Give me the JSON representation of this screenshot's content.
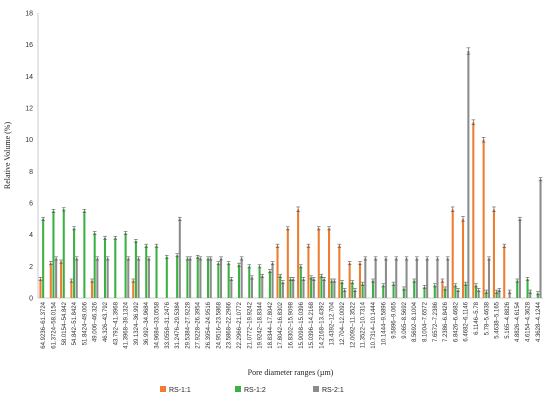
{
  "chart_data": {
    "type": "bar",
    "title": "",
    "xlabel": "Pore diameter ranges (µm)",
    "ylabel": "Relative Volume (%)",
    "ylim": [
      0,
      18
    ],
    "yticks": [
      0,
      2,
      4,
      6,
      8,
      10,
      12,
      14,
      16,
      18
    ],
    "grid": false,
    "legend_position": "bottom",
    "categories": [
      "64.9236–61.3724",
      "61.3724–58.0154",
      "58.0154–54.842",
      "54.842–51.8424",
      "51.8424–49.006",
      "49.006–46.326",
      "46.326–43.792",
      "43.792–41.3968",
      "41.3968–39.1324",
      "39.1324–36.992",
      "36.992–34.9684",
      "34.9684–33.0558",
      "33.0558–31.2476",
      "31.2476–29.5384",
      "29.5384–27.9228",
      "27.9228–26.3954",
      "26.3954–24.9516",
      "24.9516–23.5868",
      "23.5868–22.2966",
      "22.2966–21.0772",
      "21.0772–19.9242",
      "19.9242–18.8344",
      "18.8344–17.8042",
      "17.8042–16.8302",
      "16.8302–15.9098",
      "15.9098–15.0396",
      "15.0396–14.2168",
      "14.2168–13.4392",
      "13.4392–12.704",
      "12.704–12.0092",
      "12.0092–11.3522",
      "11.3522–10.7314",
      "10.7314–10.1444",
      "10.1444–9.5896",
      "9.5896–9.065",
      "9.065–8.5692",
      "8.5692–8.1004",
      "8.1004–7.6572",
      "7.6572–7.2386",
      "7.2386–6.8426",
      "6.8426–6.4682",
      "6.4682–6.1146",
      "6.1146–5.78",
      "5.78–5.4638",
      "5.4638–5.165",
      "5.165–4.8826",
      "4.8826–4.6154",
      "4.6154–4.3628",
      "4.3628–4.1244"
    ],
    "tick_labels_shown": [
      "64.9236–61.3724",
      "61.3724–58.0154",
      "58.0154–54.842",
      "54.842–51.8424",
      "51.8424–49.006",
      "49.006–46.326",
      "46.326–43.792",
      "43.792–41.3968",
      "41.3968–39.1324",
      "39.1324–36.992",
      "36.992–34.9684",
      "34.9684–33.0558",
      "33.0558–31.2476",
      "31.2476–29.5384",
      "29.5384–27.9228",
      "27.9228–26.3954",
      "26.3954–24.9516",
      "24.9516–23.5868",
      "23.5868–22.2966",
      "22.2966–21.0772",
      "21.0772–19.9242",
      "19.9242–18.8344",
      "18.8344–17.8042",
      "17.8042–16.8302",
      "16.8302–15.9098",
      "15.9098–15.0396",
      "15.0396–14.2168",
      "14.2168–13.4392",
      "13.4392–12.704",
      "12.704–12.0092",
      "12.0092–11.3522",
      "11.3522–10.7314",
      "10.7314–10.1444",
      "10.1444–9.5896",
      "9.5896–9.065",
      "9.065–8.5692",
      "8.5692–8.1004",
      "8.1004–7.6572",
      "7.6572–7.2386",
      "7.2386–6.8426",
      "6.8426–6.4682",
      "6.4682–6.1146",
      "6.1146–5.78",
      "5.78–5.4638",
      "5.4638–5.165",
      "5.165–4.8826",
      "4.8826–4.6154",
      "4.6154–4.3628",
      "4.3628–4.1244"
    ],
    "series": [
      {
        "name": "RS-1:1",
        "color": "#ED7D31",
        "values": [
          1.2,
          2.2,
          2.3,
          1.1,
          0,
          1.1,
          0,
          0,
          0,
          1.1,
          0,
          0,
          0,
          0,
          0,
          0,
          0,
          0,
          0,
          0,
          0,
          0,
          0,
          3.3,
          4.4,
          5.6,
          3.3,
          4.4,
          4.4,
          3.3,
          2.2,
          2.2,
          0,
          0,
          0,
          0,
          0,
          0,
          0,
          1.1,
          5.6,
          5.0,
          11.1,
          10.0,
          5.6,
          3.3,
          0,
          0,
          0
        ],
        "errors": [
          0.1,
          0.1,
          0.1,
          0.1,
          0,
          0.1,
          0,
          0,
          0,
          0.1,
          0,
          0,
          0,
          0,
          0,
          0,
          0,
          0,
          0,
          0,
          0,
          0,
          0,
          0.1,
          0.1,
          0.15,
          0.1,
          0.1,
          0.1,
          0.1,
          0.1,
          0.1,
          0,
          0,
          0,
          0,
          0,
          0,
          0,
          0.1,
          0.15,
          0.15,
          0.15,
          0.15,
          0.15,
          0.1,
          0,
          0,
          0
        ]
      },
      {
        "name": "RS-1:2",
        "color": "#3CB043",
        "values": [
          5.0,
          5.5,
          5.6,
          4.4,
          5.5,
          4.1,
          3.8,
          3.8,
          4.1,
          3.6,
          3.3,
          3.3,
          2.6,
          2.7,
          2.5,
          2.6,
          2.5,
          2.2,
          2.2,
          2.1,
          2.0,
          2.0,
          1.7,
          1.4,
          1.2,
          2.0,
          1.3,
          1.4,
          1.1,
          1.0,
          1.0,
          0.9,
          1.1,
          0.8,
          0.9,
          0.6,
          1.1,
          0.7,
          0.8,
          0.6,
          0.8,
          0.9,
          0.8,
          0.4,
          0.4,
          0,
          1.1,
          1.2,
          0.3
        ],
        "errors": [
          0.1,
          0.1,
          0.1,
          0.1,
          0.1,
          0.1,
          0.1,
          0.1,
          0.1,
          0.1,
          0.1,
          0.1,
          0.1,
          0.1,
          0.1,
          0.1,
          0.1,
          0.1,
          0.1,
          0.1,
          0.1,
          0.1,
          0.1,
          0.1,
          0.1,
          0.1,
          0.1,
          0.1,
          0.1,
          0.1,
          0.1,
          0.1,
          0.1,
          0.1,
          0.1,
          0.1,
          0.1,
          0.1,
          0.1,
          0.1,
          0.1,
          0.1,
          0.1,
          0.1,
          0.1,
          0,
          0.1,
          0.1,
          0.1
        ]
      },
      {
        "name": "RS-2:1",
        "color": "#8C8C8C",
        "values": [
          0,
          2.5,
          0,
          2.5,
          0,
          2.5,
          2.5,
          0,
          2.5,
          2.5,
          2.5,
          0,
          0,
          5.0,
          2.5,
          2.5,
          2.5,
          2.5,
          1.2,
          2.5,
          1.3,
          1.4,
          2.2,
          1.0,
          1.2,
          1.2,
          1.2,
          1.2,
          1.1,
          0.5,
          0.5,
          2.5,
          2.5,
          2.5,
          2.5,
          2.5,
          2.5,
          2.5,
          2.5,
          2.5,
          0.5,
          15.6,
          0.5,
          2.5,
          0.5,
          0.4,
          5.0,
          0.4,
          7.5
        ],
        "errors": [
          0,
          0.1,
          0,
          0.1,
          0,
          0.1,
          0.1,
          0,
          0.1,
          0.1,
          0.1,
          0,
          0,
          0.1,
          0.1,
          0.1,
          0.1,
          0.1,
          0.1,
          0.1,
          0.1,
          0.1,
          0.1,
          0.1,
          0.1,
          0.1,
          0.1,
          0.1,
          0.1,
          0.1,
          0.1,
          0.1,
          0.1,
          0.1,
          0.1,
          0.1,
          0.1,
          0.1,
          0.1,
          0.1,
          0.1,
          0.2,
          0.1,
          0.1,
          0.1,
          0.1,
          0.1,
          0.1,
          0.1
        ]
      }
    ]
  }
}
